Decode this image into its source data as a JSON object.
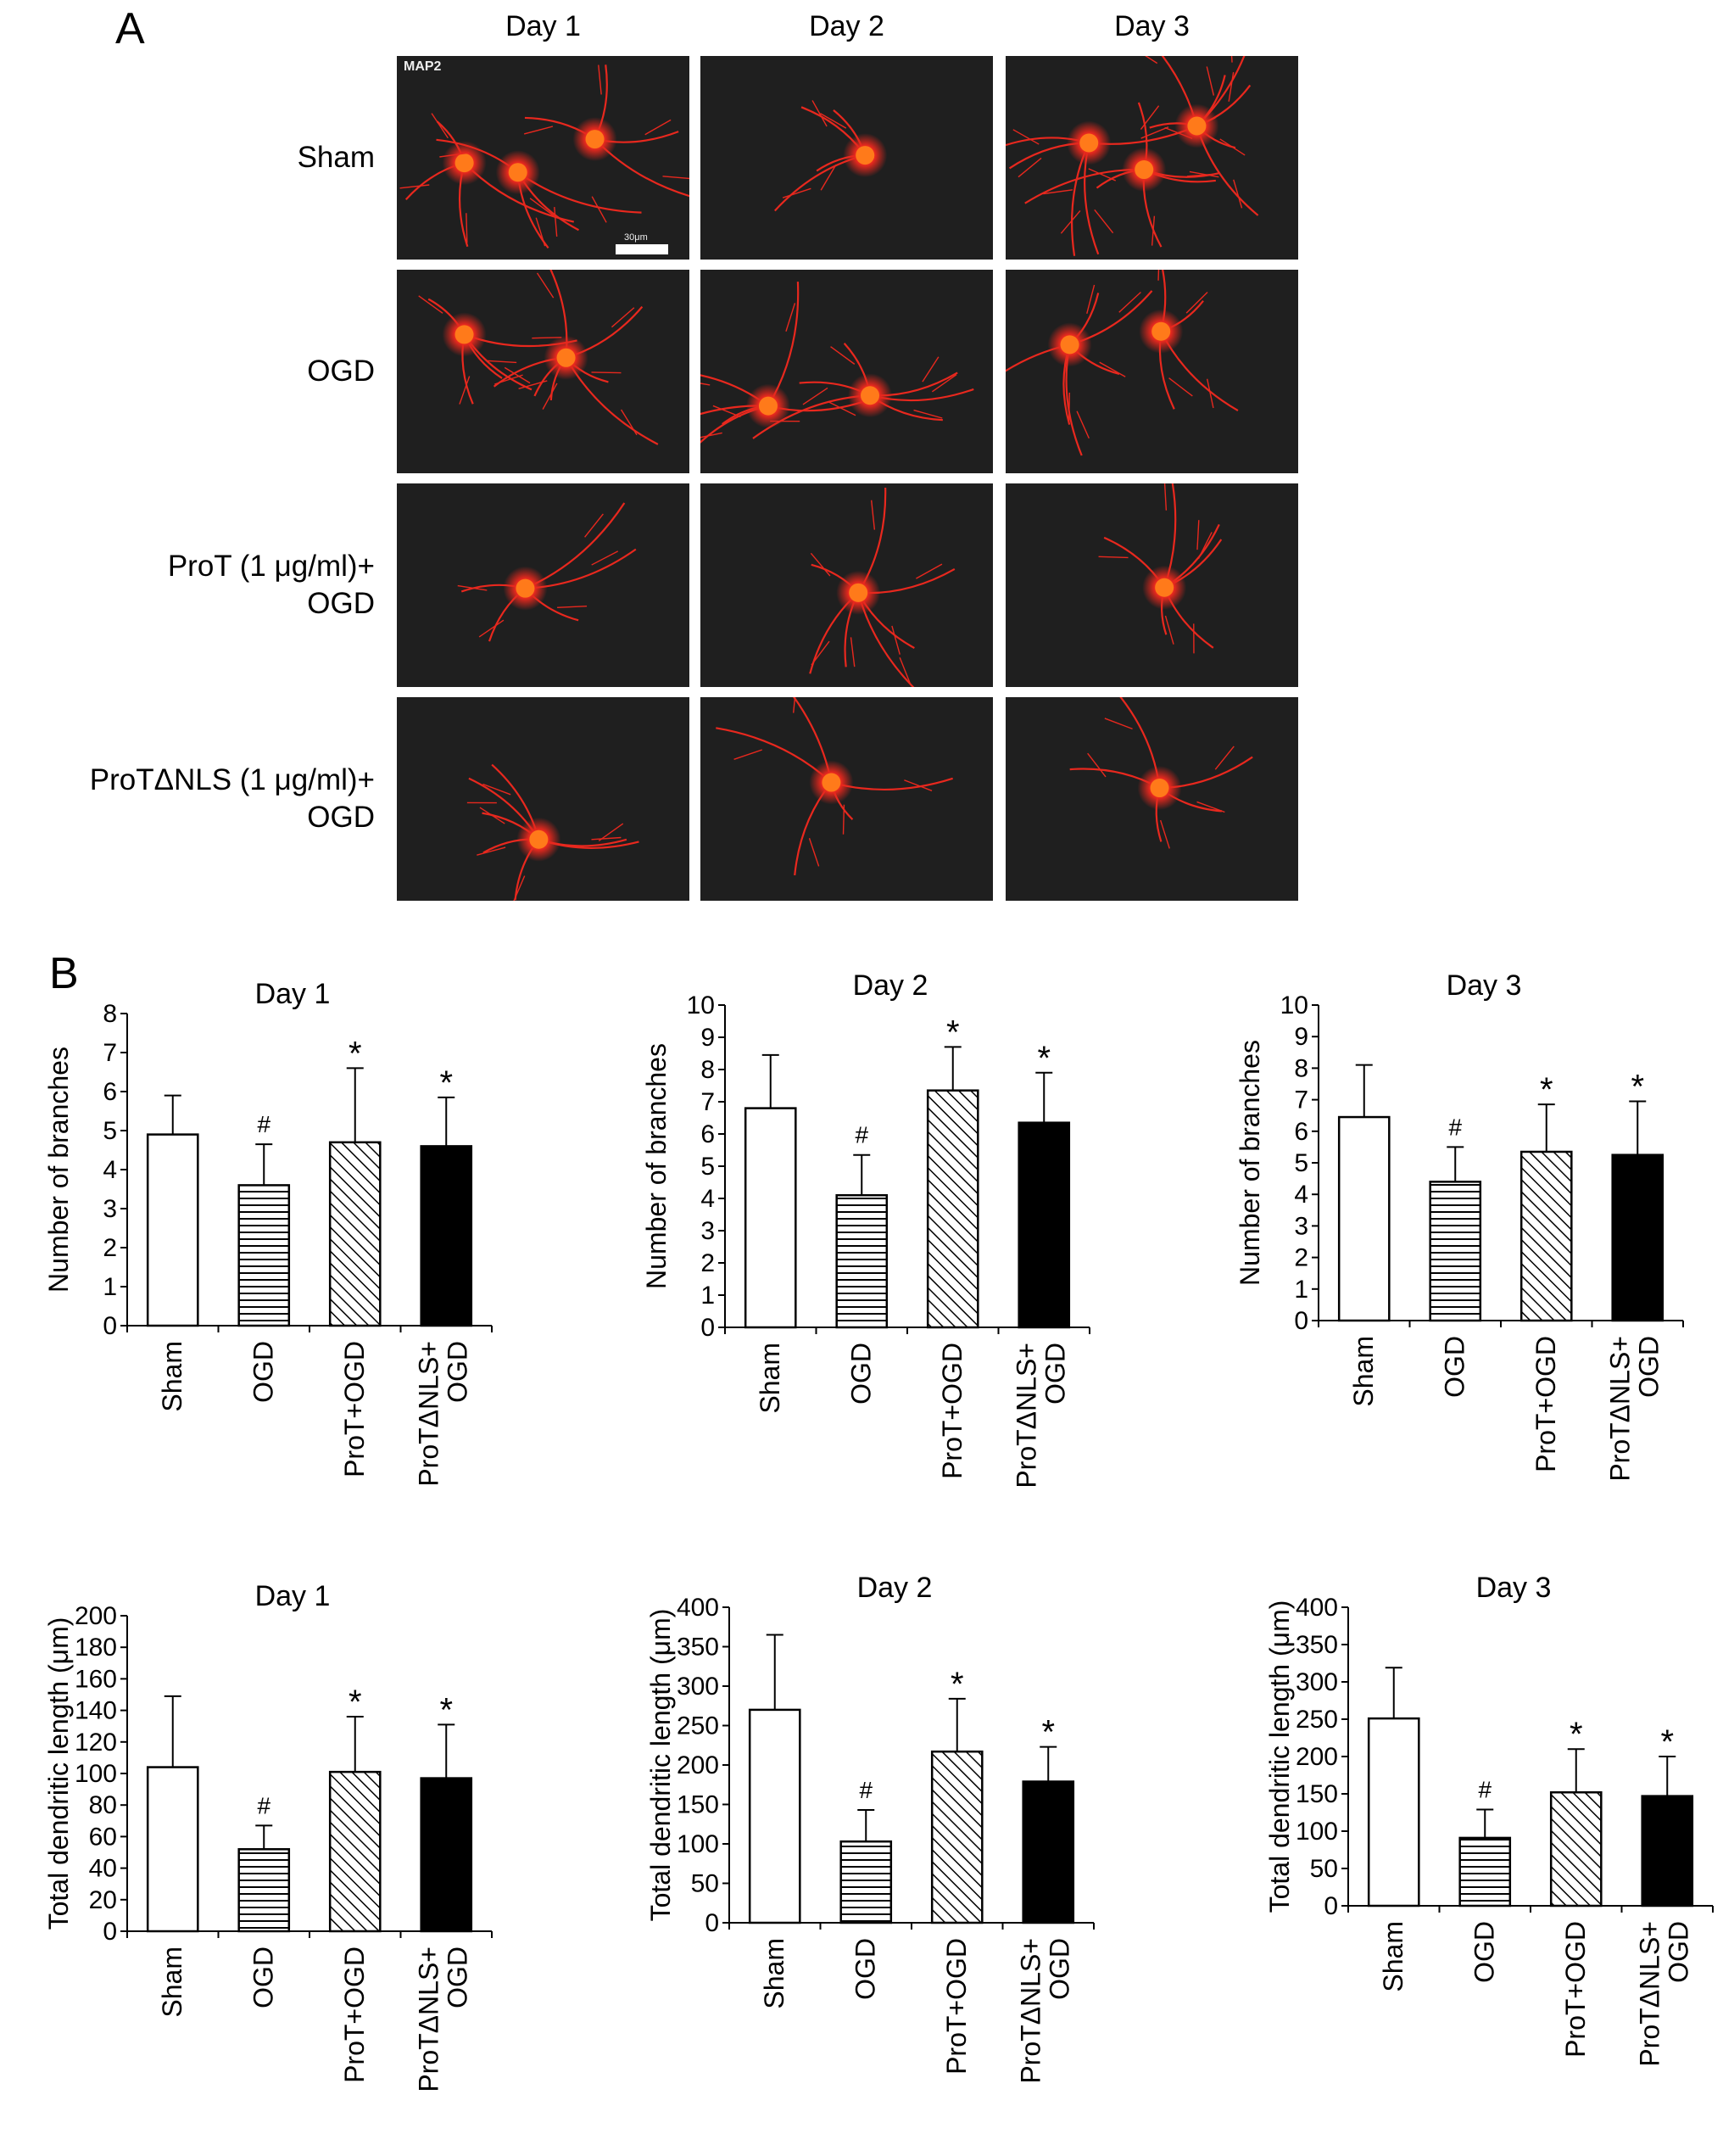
{
  "panel_a": {
    "letter": "A",
    "columns": [
      "Day 1",
      "Day 2",
      "Day 3"
    ],
    "rows": [
      {
        "line1": "Sham",
        "line2": ""
      },
      {
        "line1": "OGD",
        "line2": ""
      },
      {
        "line1": "ProT (1 μg/ml)+",
        "line2": "OGD"
      },
      {
        "line1": "ProTΔNLS (1 μg/ml)+",
        "line2": "OGD"
      }
    ],
    "stain_label": "MAP2",
    "scale_label": "30μm",
    "image_color": "#1f1f1f",
    "neuron_color": "#e8281e"
  },
  "panel_b": {
    "letter": "B"
  },
  "chart_data": [
    {
      "type": "bar",
      "title": "Day 1",
      "ylabel": "Number of branches",
      "categories": [
        "Sham",
        "OGD",
        "ProT+OGD",
        "ProTΔNLS+ OGD"
      ],
      "values": [
        4.9,
        3.6,
        4.7,
        4.6
      ],
      "errors": [
        1.0,
        1.05,
        1.9,
        1.25
      ],
      "markers": [
        "",
        "#",
        "*",
        "*"
      ],
      "ylim": [
        0,
        8
      ],
      "ytick_step": 1
    },
    {
      "type": "bar",
      "title": "Day 2",
      "ylabel": "Number of branches",
      "categories": [
        "Sham",
        "OGD",
        "ProT+OGD",
        "ProTΔNLS+ OGD"
      ],
      "values": [
        6.8,
        4.1,
        7.35,
        6.35
      ],
      "errors": [
        1.65,
        1.25,
        1.35,
        1.55
      ],
      "markers": [
        "",
        "#",
        "*",
        "*"
      ],
      "ylim": [
        0,
        10
      ],
      "ytick_step": 1
    },
    {
      "type": "bar",
      "title": "Day 3",
      "ylabel": "Number of branches",
      "categories": [
        "Sham",
        "OGD",
        "ProT+OGD",
        "ProTΔNLS+ OGD"
      ],
      "values": [
        6.45,
        4.4,
        5.35,
        5.25
      ],
      "errors": [
        1.65,
        1.1,
        1.5,
        1.7
      ],
      "markers": [
        "",
        "#",
        "*",
        "*"
      ],
      "ylim": [
        0,
        10
      ],
      "ytick_step": 1
    },
    {
      "type": "bar",
      "title": "Day 1",
      "ylabel": "Total dendritic length (μm)",
      "categories": [
        "Sham",
        "OGD",
        "ProT+OGD",
        "ProTΔNLS+ OGD"
      ],
      "values": [
        104,
        52,
        101,
        97
      ],
      "errors": [
        45,
        15,
        35,
        34
      ],
      "markers": [
        "",
        "#",
        "*",
        "*"
      ],
      "ylim": [
        0,
        200
      ],
      "ytick_step": 20
    },
    {
      "type": "bar",
      "title": "Day 2",
      "ylabel": "Total dendritic length (μm)",
      "categories": [
        "Sham",
        "OGD",
        "ProT+OGD",
        "ProTΔNLS+ OGD"
      ],
      "values": [
        270,
        103,
        217,
        179
      ],
      "errors": [
        95,
        40,
        67,
        44
      ],
      "markers": [
        "",
        "#",
        "*",
        "*"
      ],
      "ylim": [
        0,
        400
      ],
      "ytick_step": 50
    },
    {
      "type": "bar",
      "title": "Day 3",
      "ylabel": "Total dendritic length (μm)",
      "categories": [
        "Sham",
        "OGD",
        "ProT+OGD",
        "ProTΔNLS+ OGD"
      ],
      "values": [
        251,
        91,
        152,
        147
      ],
      "errors": [
        68,
        38,
        58,
        53
      ],
      "markers": [
        "",
        "#",
        "*",
        "*"
      ],
      "ylim": [
        0,
        400
      ],
      "ytick_step": 50
    }
  ]
}
